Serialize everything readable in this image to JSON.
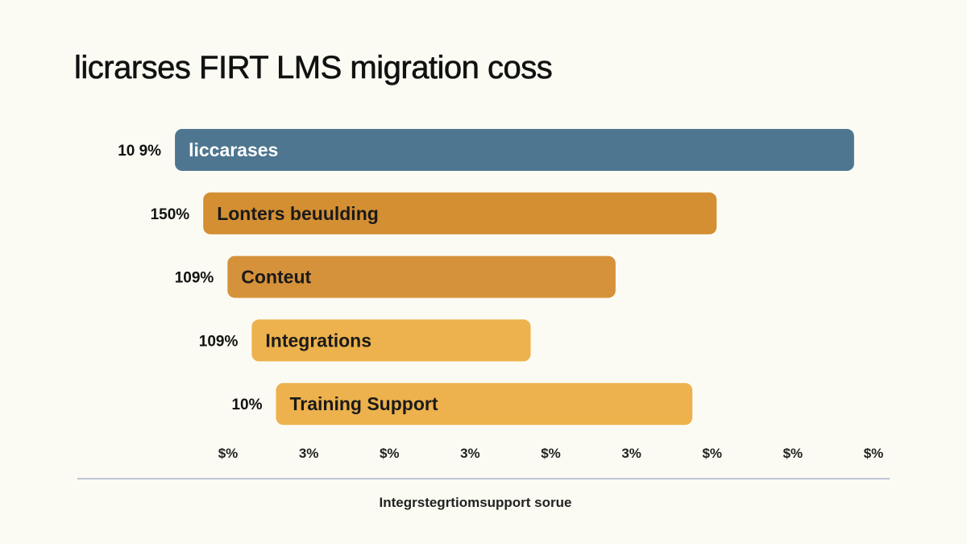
{
  "chart_data": {
    "type": "bar",
    "orientation": "horizontal",
    "title": "licrarses FIRT LMS migration coss",
    "xlabel": "Integrstegrtiomsupport sorue",
    "categories": [
      "liccarases",
      "Lonters beuulding",
      "Conteut",
      "Integrations",
      "Training Support"
    ],
    "value_labels": [
      "10 9%",
      "150%",
      "109%",
      "109%",
      "10%"
    ],
    "x_tick_labels": [
      "$%",
      "3%",
      "$%",
      "3%",
      "$%",
      "3%",
      "$%",
      "$%",
      "$%"
    ],
    "series": [
      {
        "bar_start": [
          0.5,
          1.2,
          1.8,
          2.4,
          3.0
        ],
        "bar_end": [
          17.3,
          13.9,
          11.4,
          9.3,
          13.3
        ],
        "colors": [
          "#4e7690",
          "#d48f33",
          "#d6923a",
          "#edb24d",
          "#edb24d"
        ],
        "label_colors": [
          "#ffffff",
          "#1a1a1a",
          "#1a1a1a",
          "#1a1a1a",
          "#1a1a1a"
        ]
      }
    ],
    "xlim": [
      0,
      18
    ],
    "grid": false,
    "legend": "none"
  }
}
